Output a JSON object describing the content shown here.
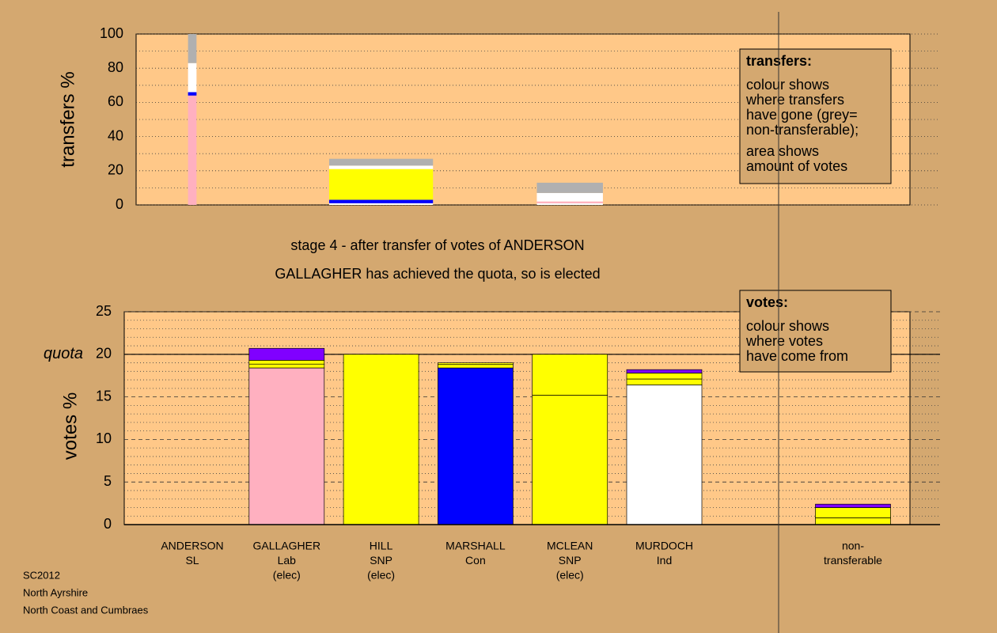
{
  "chart_data": [
    {
      "type": "stacked-bar",
      "ylabel": "transfers %",
      "ylim": [
        0,
        100
      ],
      "yticks": [
        0,
        20,
        40,
        60,
        80,
        100
      ],
      "minor_yticks": [
        10,
        30,
        50,
        70,
        90
      ],
      "grid": true,
      "bars": [
        {
          "column": 0,
          "width": 0.09,
          "segments": [
            {
              "color": "#ffb0c0",
              "value": 64
            },
            {
              "color": "#0000ff",
              "value": 2
            },
            {
              "color": "#ffffff",
              "value": 17
            },
            {
              "color": "#b0b0b0",
              "value": 17
            }
          ]
        },
        {
          "column": 2,
          "width": 1.1,
          "segments": [
            {
              "color": "#ffffff",
              "value": 1
            },
            {
              "color": "#0000ff",
              "value": 2
            },
            {
              "color": "#ffff00",
              "value": 18
            },
            {
              "color": "#ffffff",
              "value": 2
            },
            {
              "color": "#b0b0b0",
              "value": 4
            }
          ]
        },
        {
          "column": 4,
          "width": 0.7,
          "segments": [
            {
              "color": "#ffffff",
              "value": 1
            },
            {
              "color": "#ffb0c0",
              "value": 1
            },
            {
              "color": "#ffffff",
              "value": 5
            },
            {
              "color": "#b0b0b0",
              "value": 6
            }
          ]
        }
      ],
      "legend": {
        "title": "transfers:",
        "lines": [
          "colour shows",
          "where transfers",
          "have gone (grey=",
          "non-transferable);",
          "area shows",
          "amount of votes"
        ]
      }
    },
    {
      "type": "stacked-bar",
      "ylabel": "votes %",
      "ylim": [
        0,
        25
      ],
      "yticks": [
        0,
        5,
        10,
        15,
        20,
        25
      ],
      "minor_yticks": [
        1,
        2,
        3,
        4,
        6,
        7,
        8,
        9,
        11,
        12,
        13,
        14,
        16,
        17,
        18,
        19,
        21,
        22,
        23,
        24
      ],
      "grid": true,
      "quota": {
        "value": 20,
        "label": "quota"
      },
      "categories": [
        [
          "ANDERSON",
          "SL"
        ],
        [
          "GALLAGHER",
          "Lab",
          "(elec)"
        ],
        [
          "HILL",
          "SNP",
          "(elec)"
        ],
        [
          "MARSHALL",
          "Con"
        ],
        [
          "MCLEAN",
          "SNP",
          "(elec)"
        ],
        [
          "MURDOCH",
          "Ind"
        ],
        [
          "non-",
          "transferable"
        ]
      ],
      "bars": [
        {
          "segments": [
            {
              "color": "#ffffff",
              "value": 0
            }
          ]
        },
        {
          "segments": [
            {
              "color": "#ffb0c0",
              "value": 18.4
            },
            {
              "color": "#ffff00",
              "value": 0.45
            },
            {
              "color": "#ffff00",
              "value": 0.45
            },
            {
              "color": "#8000ff",
              "value": 1.4
            }
          ]
        },
        {
          "segments": [
            {
              "color": "#ffff00",
              "value": 20
            }
          ]
        },
        {
          "segments": [
            {
              "color": "#0000ff",
              "value": 18.4
            },
            {
              "color": "#ffff00",
              "value": 0.4
            },
            {
              "color": "#ffff00",
              "value": 0.2
            }
          ]
        },
        {
          "segments": [
            {
              "color": "#ffff00",
              "value": 15.2
            },
            {
              "color": "#ffff00",
              "value": 4.8
            }
          ]
        },
        {
          "segments": [
            {
              "color": "#ffffff",
              "value": 16.4
            },
            {
              "color": "#ffff00",
              "value": 0.7
            },
            {
              "color": "#ffff00",
              "value": 0.7
            },
            {
              "color": "#8000ff",
              "value": 0.4
            }
          ]
        },
        {
          "segments": [
            {
              "color": "#ffff00",
              "value": 0.8
            },
            {
              "color": "#ffff00",
              "value": 1.2
            },
            {
              "color": "#8000ff",
              "value": 0.4
            }
          ]
        }
      ],
      "legend": {
        "title": "votes:",
        "lines": [
          "colour shows",
          "where votes",
          "have come from"
        ]
      }
    }
  ],
  "stage": [
    "stage 4 - after transfer of votes of ANDERSON",
    "GALLAGHER has achieved the quota, so is elected"
  ],
  "footer": [
    "SC2012",
    "North Ayrshire",
    "North Coast and Cumbraes"
  ]
}
